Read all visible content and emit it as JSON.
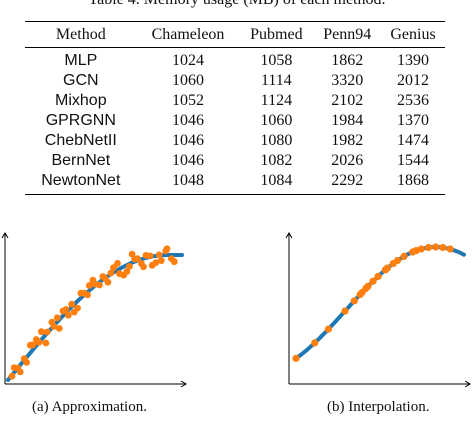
{
  "table": {
    "caption": "Table 4. Memory usage (MB) of each method.",
    "headers": [
      "Method",
      "Chameleon",
      "Pubmed",
      "Penn94",
      "Genius"
    ],
    "rows": [
      [
        "MLP",
        "1024",
        "1058",
        "1862",
        "1390"
      ],
      [
        "GCN",
        "1060",
        "1114",
        "3320",
        "2012"
      ],
      [
        "Mixhop",
        "1052",
        "1124",
        "2102",
        "2536"
      ],
      [
        "GPRGNN",
        "1046",
        "1060",
        "1984",
        "1370"
      ],
      [
        "ChebNetII",
        "1046",
        "1080",
        "1982",
        "1474"
      ],
      [
        "BernNet",
        "1046",
        "1082",
        "2026",
        "1544"
      ],
      [
        "NewtonNet",
        "1048",
        "1084",
        "2292",
        "1868"
      ]
    ]
  },
  "figures": {
    "left_caption": "(a)  Approximation.",
    "right_caption": "(b)  Interpolation.",
    "curve_color": "#1f77b4",
    "point_color": "#ff7f0e"
  }
}
